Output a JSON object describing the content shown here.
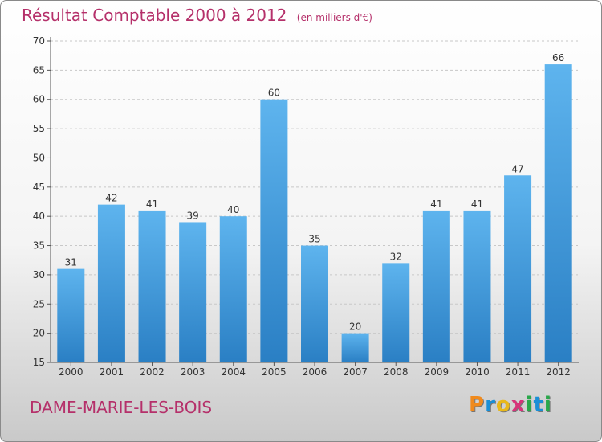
{
  "header": {
    "title": "Résultat Comptable 2000 à 2012",
    "subtitle": "(en milliers d'€)"
  },
  "location": "DAME-MARIE-LES-BOIS",
  "brand": {
    "letters": [
      "P",
      "r",
      "o",
      "x",
      "i",
      "t",
      "i"
    ],
    "colors": [
      "#f08a1d",
      "#1a8fd6",
      "#e8b81a",
      "#d6337a",
      "#29a84a",
      "#1a8fd6",
      "#29a84a"
    ]
  },
  "chart_data": {
    "type": "bar",
    "title": "Résultat Comptable 2000 à 2012",
    "subtitle": "(en milliers d'€)",
    "categories": [
      "2000",
      "2001",
      "2002",
      "2003",
      "2004",
      "2005",
      "2006",
      "2007",
      "2008",
      "2009",
      "2010",
      "2011",
      "2012"
    ],
    "values": [
      31,
      42,
      41,
      39,
      40,
      60,
      35,
      20,
      32,
      41,
      41,
      47,
      66
    ],
    "value_labels": [
      "31",
      "42",
      "41",
      "39",
      "40",
      "60",
      "35",
      "20",
      "32",
      "41",
      "41",
      "47",
      "66"
    ],
    "ylim": [
      15,
      70
    ],
    "yticks": [
      "15",
      "20",
      "25",
      "30",
      "35",
      "40",
      "45",
      "50",
      "55",
      "60",
      "65",
      "70"
    ],
    "grid": "horizontal dashed",
    "bar_color": "#3d98dc"
  }
}
